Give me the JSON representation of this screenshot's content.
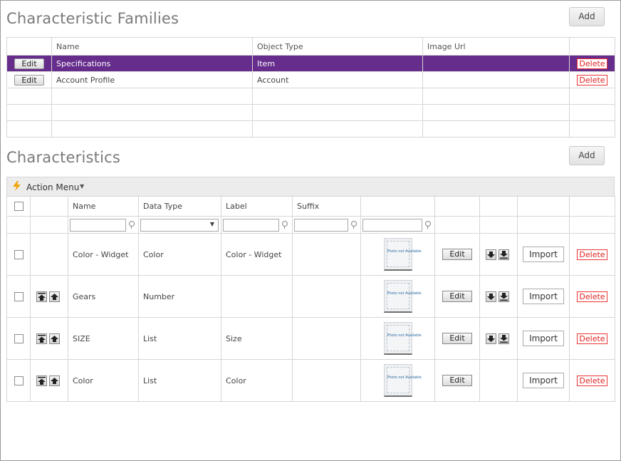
{
  "families": {
    "title": "Characteristic Families",
    "add_label": "Add",
    "columns": [
      "",
      "Name",
      "Object Type",
      "Image Url",
      ""
    ],
    "rows": [
      {
        "edit": "Edit",
        "name": "Specifications",
        "object_type": "Item",
        "image_url": "",
        "delete": "Delete",
        "selected": true
      },
      {
        "edit": "Edit",
        "name": "Account Profile",
        "object_type": "Account",
        "image_url": "",
        "delete": "Delete",
        "selected": false
      }
    ]
  },
  "characteristics": {
    "title": "Characteristics",
    "add_label": "Add",
    "action_menu_label": "Action Menu",
    "columns": [
      "Name",
      "Data Type",
      "Label",
      "Suffix"
    ],
    "photo_text": "Photo not Available",
    "edit_label": "Edit",
    "import_label": "Import",
    "delete_label": "Delete",
    "rows": [
      {
        "name": "Color - Widget",
        "data_type": "Color",
        "label": "Color - Widget",
        "suffix": "",
        "has_up": false,
        "has_down": true
      },
      {
        "name": "Gears",
        "data_type": "Number",
        "label": "",
        "suffix": "",
        "has_up": true,
        "has_down": true
      },
      {
        "name": "SIZE",
        "data_type": "List",
        "label": "Size",
        "suffix": "",
        "has_up": true,
        "has_down": true
      },
      {
        "name": "Color",
        "data_type": "List",
        "label": "Color",
        "suffix": "",
        "has_up": true,
        "has_down": false
      }
    ]
  },
  "icons": {
    "action_menu": "lightning-bolt-icon",
    "filter": "pin-filter-icon",
    "move_top": "move-top-icon",
    "move_up": "move-up-icon",
    "move_down": "move-down-icon",
    "move_bottom": "move-bottom-icon"
  },
  "colors": {
    "selected_row": "#662d8c",
    "delete_text": "#e02020",
    "bolt": "#f0a30a"
  }
}
